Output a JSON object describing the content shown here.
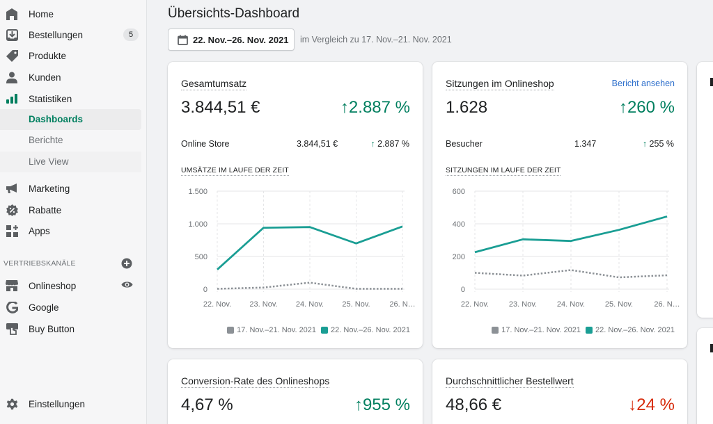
{
  "sidebar": {
    "items": [
      {
        "label": "Home",
        "icon": "home-icon"
      },
      {
        "label": "Bestellungen",
        "icon": "orders-icon",
        "badge": "5"
      },
      {
        "label": "Produkte",
        "icon": "tag-icon"
      },
      {
        "label": "Kunden",
        "icon": "person-icon"
      },
      {
        "label": "Statistiken",
        "icon": "analytics-icon"
      }
    ],
    "sub_items": [
      {
        "label": "Dashboards",
        "active": true
      },
      {
        "label": "Berichte"
      },
      {
        "label": "Live View"
      }
    ],
    "items2": [
      {
        "label": "Marketing",
        "icon": "megaphone-icon"
      },
      {
        "label": "Rabatte",
        "icon": "discount-icon"
      },
      {
        "label": "Apps",
        "icon": "apps-icon"
      }
    ],
    "channels_heading": "VERTRIEBSKANÄLE",
    "channels": [
      {
        "label": "Onlineshop",
        "icon": "store-icon"
      },
      {
        "label": "Google",
        "icon": "google-icon"
      },
      {
        "label": "Buy Button",
        "icon": "buy-button-icon"
      }
    ],
    "settings": {
      "label": "Einstellungen",
      "icon": "gear-icon"
    }
  },
  "header": {
    "title": "Übersichts-Dashboard",
    "date_range": "22. Nov.–26. Nov. 2021",
    "compare_text": "im Vergleich zu 17. Nov.–21. Nov. 2021"
  },
  "colors": {
    "accent": "#007f5f",
    "current_series": "#1a9e94",
    "previous_series": "#8c9196",
    "negative": "#d72c0d",
    "link": "#2c6ecb"
  },
  "cards": [
    {
      "title": "Gesamtumsatz",
      "value": "3.844,51 €",
      "delta": "↑2.887 %",
      "row": {
        "label": "Online Store",
        "value": "3.844,51 €",
        "delta_arrow": "↑",
        "delta": "2.887 %"
      },
      "chart_title": "UMSÄTZE IM LAUFE DER ZEIT"
    },
    {
      "title": "Sitzungen im Onlineshop",
      "link": "Bericht ansehen",
      "value": "1.628",
      "delta": "↑260 %",
      "row": {
        "label": "Besucher",
        "value": "1.347",
        "delta_arrow": "↑",
        "delta": "255 %"
      },
      "chart_title": "SITZUNGEN IM LAUFE DER ZEIT"
    },
    {
      "title": "Conversion-Rate des Onlineshops",
      "value": "4,67 %",
      "delta": "↑955 %"
    },
    {
      "title": "Durchschnittlicher Bestellwert",
      "value": "48,66 €",
      "delta": "↓24 %"
    }
  ],
  "chart_data": [
    {
      "type": "line",
      "title": "UMSÄTZE IM LAUFE DER ZEIT",
      "x": [
        "22. Nov.",
        "23. Nov.",
        "24. Nov.",
        "25. Nov.",
        "26. N…"
      ],
      "yticks": [
        "0",
        "500",
        "1.000",
        "1.500"
      ],
      "ylim": [
        0,
        1500
      ],
      "grid": true,
      "legend": "bottom-right",
      "series": [
        {
          "name": "17. Nov.–21. Nov. 2021",
          "style": "dotted",
          "values": [
            5,
            25,
            100,
            5,
            5
          ]
        },
        {
          "name": "22. Nov.–26. Nov. 2021",
          "style": "solid",
          "values": [
            300,
            940,
            950,
            700,
            960
          ]
        }
      ]
    },
    {
      "type": "line",
      "title": "SITZUNGEN IM LAUFE DER ZEIT",
      "x": [
        "22. Nov.",
        "23. Nov.",
        "24. Nov.",
        "25. Nov.",
        "26. N…"
      ],
      "yticks": [
        "0",
        "200",
        "400",
        "600"
      ],
      "ylim": [
        0,
        600
      ],
      "grid": true,
      "legend": "bottom-right",
      "series": [
        {
          "name": "17. Nov.–21. Nov. 2021",
          "style": "dotted",
          "values": [
            100,
            83,
            117,
            72,
            85
          ]
        },
        {
          "name": "22. Nov.–26. Nov. 2021",
          "style": "solid",
          "values": [
            226,
            305,
            295,
            363,
            445
          ]
        }
      ]
    }
  ]
}
